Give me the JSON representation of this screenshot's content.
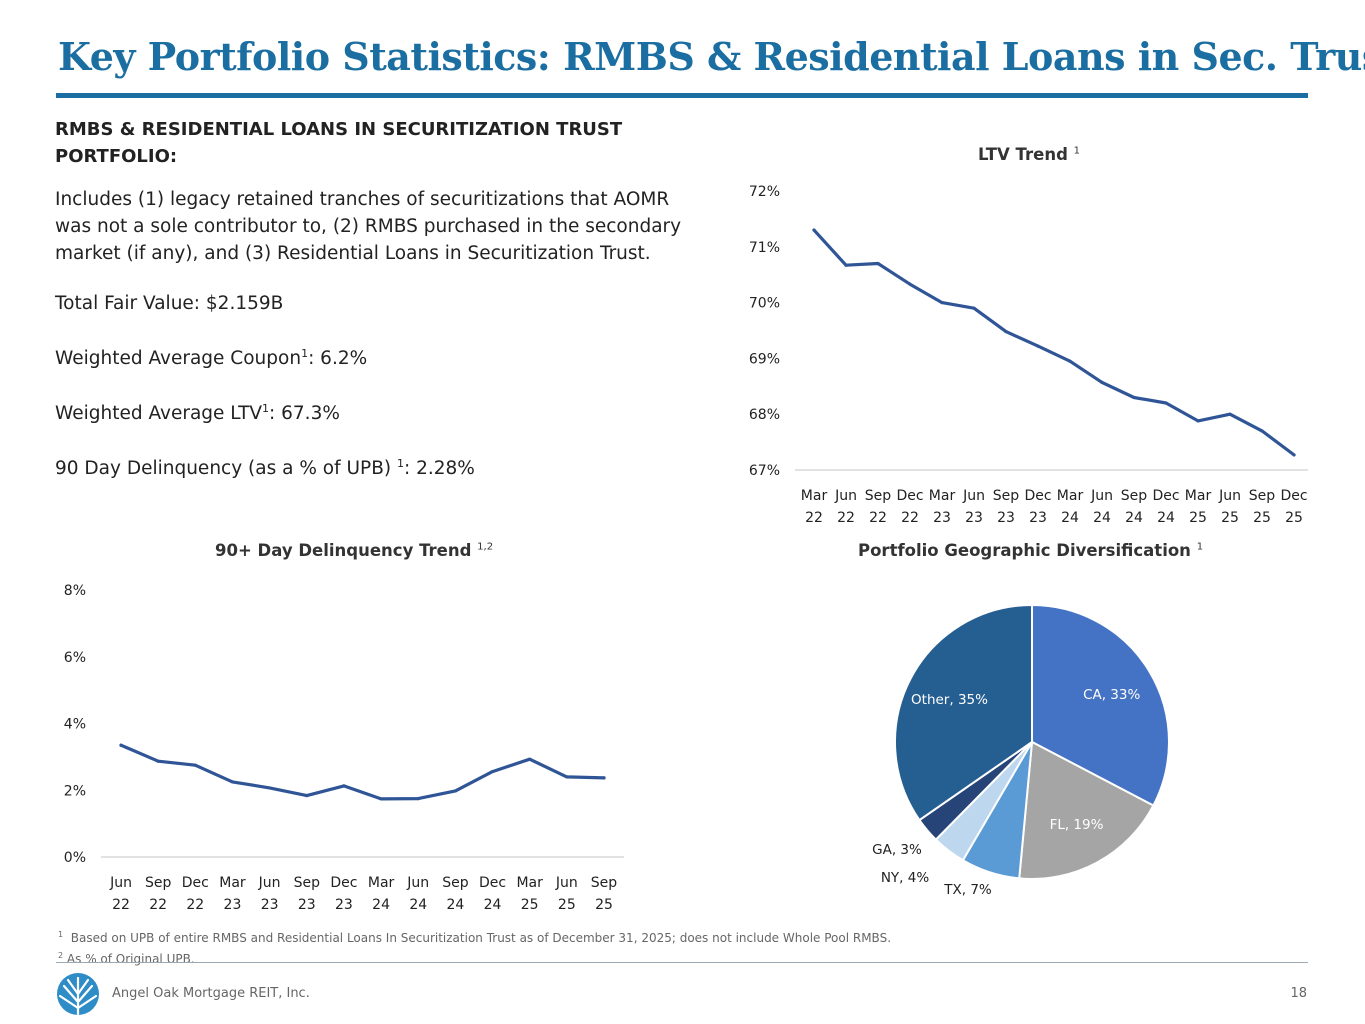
{
  "page": {
    "title": "Key Portfolio Statistics: RMBS & Residential Loans in Sec. Trust",
    "company": "Angel Oak Mortgage REIT, Inc.",
    "page_number": "18",
    "accent_color": "#1b6ea1",
    "logo_icon": "angel-oak-tree-icon"
  },
  "summary": {
    "heading_line1": "RMBS & RESIDENTIAL LOANS IN SECURITIZATION TRUST",
    "heading_line2": "PORTFOLIO:",
    "description": "Includes (1) legacy retained tranches of securitizations that AOMR was not a sole contributor to, (2) RMBS purchased in the secondary market (if any), and (3) Residential Loans in Securitization Trust.",
    "fair_value": "Total Fair Value: $2.159B",
    "coupon_label": "Weighted Average Coupon",
    "coupon_sup": "1",
    "coupon_value": ": 6.2%",
    "ltv_label": "Weighted Average LTV",
    "ltv_sup": "1",
    "ltv_value": ": 67.3%",
    "delinquency_label": "90 Day Delinquency (as a % of UPB) ",
    "delinquency_sup": "1",
    "delinquency_value": ": 2.28%"
  },
  "footnotes": {
    "note1_mark": "1",
    "note1": "Based on UPB of entire RMBS and Residential Loans In Securitization Trust as of December 31, 2025; does not include Whole Pool RMBS.",
    "note2_mark": "2",
    "note2": "As % of Original UPB."
  },
  "chart_data": [
    {
      "id": "ltv",
      "type": "line",
      "title": "LTV Trend",
      "title_sup": "1",
      "color": "#2f5597",
      "categories": [
        [
          "Mar",
          "22"
        ],
        [
          "Jun",
          "22"
        ],
        [
          "Sep",
          "22"
        ],
        [
          "Dec",
          "22"
        ],
        [
          "Mar",
          "23"
        ],
        [
          "Jun",
          "23"
        ],
        [
          "Sep",
          "23"
        ],
        [
          "Dec",
          "23"
        ],
        [
          "Mar",
          "24"
        ],
        [
          "Jun",
          "24"
        ],
        [
          "Sep",
          "24"
        ],
        [
          "Dec",
          "24"
        ],
        [
          "Mar",
          "25"
        ],
        [
          "Jun",
          "25"
        ],
        [
          "Sep",
          "25"
        ],
        [
          "Dec",
          "25"
        ]
      ],
      "values": [
        71.3,
        70.67,
        70.7,
        70.33,
        70.0,
        69.9,
        69.48,
        69.22,
        68.95,
        68.57,
        68.3,
        68.2,
        67.88,
        68.0,
        67.7,
        67.27
      ],
      "yticks": [
        "67%",
        "68%",
        "69%",
        "70%",
        "71%",
        "72%"
      ],
      "ylim": [
        67,
        72
      ],
      "ylabel": "",
      "xlabel": ""
    },
    {
      "id": "delinquency",
      "type": "line",
      "title": "90+ Day Delinquency Trend",
      "title_sup": "1,2",
      "color": "#2f5597",
      "categories": [
        [
          "Jun",
          "22"
        ],
        [
          "Sep",
          "22"
        ],
        [
          "Dec",
          "22"
        ],
        [
          "Mar",
          "23"
        ],
        [
          "Jun",
          "23"
        ],
        [
          "Sep",
          "23"
        ],
        [
          "Dec",
          "23"
        ],
        [
          "Mar",
          "24"
        ],
        [
          "Jun",
          "24"
        ],
        [
          "Sep",
          "24"
        ],
        [
          "Dec",
          "24"
        ],
        [
          "Mar",
          "25"
        ],
        [
          "Jun",
          "25"
        ],
        [
          "Sep",
          "25"
        ]
      ],
      "values": [
        3.35,
        2.87,
        2.75,
        2.25,
        2.07,
        1.84,
        2.13,
        1.74,
        1.75,
        1.98,
        2.56,
        2.93,
        2.4,
        2.37
      ],
      "yticks": [
        "0%",
        "2%",
        "4%",
        "6%",
        "8%"
      ],
      "ylim": [
        0,
        8
      ],
      "ylabel": "",
      "xlabel": ""
    },
    {
      "id": "geo",
      "type": "pie",
      "title": "Portfolio Geographic Diversification",
      "title_sup": "1",
      "slices": [
        {
          "name": "CA",
          "value": 33,
          "label": "CA, 33%",
          "color": "#4472c4",
          "text_color": "#ffffff"
        },
        {
          "name": "FL",
          "value": 19,
          "label": "FL, 19%",
          "color": "#a5a5a5",
          "text_color": "#ffffff"
        },
        {
          "name": "TX",
          "value": 7,
          "label": "TX, 7%",
          "color": "#5b9bd5",
          "text_color": "#222222"
        },
        {
          "name": "NY",
          "value": 4,
          "label": "NY, 4%",
          "color": "#bdd7ee",
          "text_color": "#222222"
        },
        {
          "name": "GA",
          "value": 3,
          "label": "GA, 3%",
          "color": "#264478",
          "text_color": "#222222"
        },
        {
          "name": "Other",
          "value": 35,
          "label": "Other, 35%",
          "color": "#255e91",
          "text_color": "#ffffff"
        }
      ]
    }
  ]
}
